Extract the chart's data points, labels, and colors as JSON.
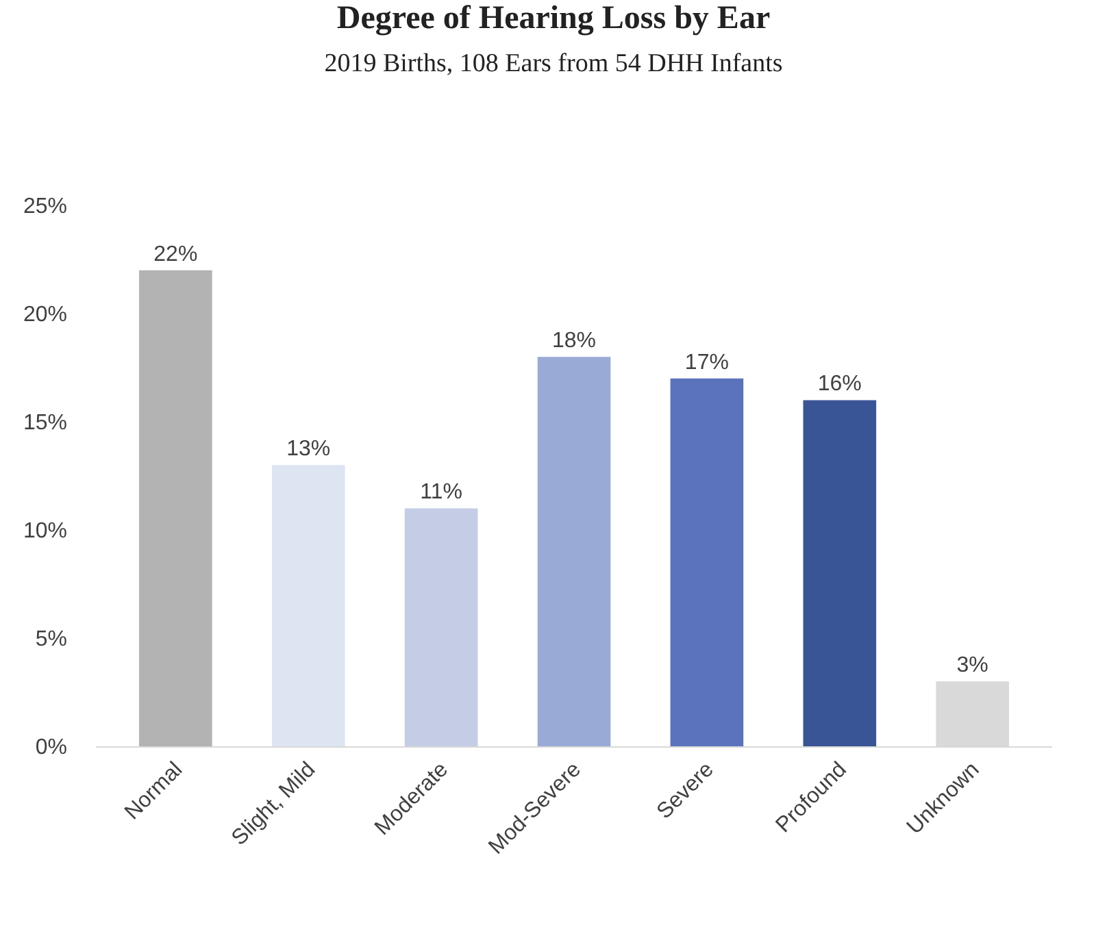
{
  "chart_data": {
    "type": "bar",
    "title": "Degree of Hearing Loss by Ear",
    "subtitle": "2019 Births, 108 Ears from 54 DHH Infants",
    "categories": [
      "Normal",
      "Slight, Mild",
      "Moderate",
      "Mod-Severe",
      "Severe",
      "Profound",
      "Unknown"
    ],
    "values": [
      22,
      13,
      11,
      18,
      17,
      16,
      3
    ],
    "colors": [
      "#b3b3b3",
      "#dde4f2",
      "#c5cde6",
      "#9aaad6",
      "#5b73bd",
      "#3a5596",
      "#d9d9d9"
    ],
    "ylim": [
      0,
      25
    ],
    "yticks": [
      {
        "value": 0,
        "label": "0%"
      },
      {
        "value": 5,
        "label": "5%"
      },
      {
        "value": 10,
        "label": "10%"
      },
      {
        "value": 15,
        "label": "15%"
      },
      {
        "value": 20,
        "label": "20%"
      },
      {
        "value": 25,
        "label": "25%"
      }
    ],
    "value_labels": [
      "22%",
      "13%",
      "11%",
      "18%",
      "17%",
      "16%",
      "3%"
    ]
  }
}
